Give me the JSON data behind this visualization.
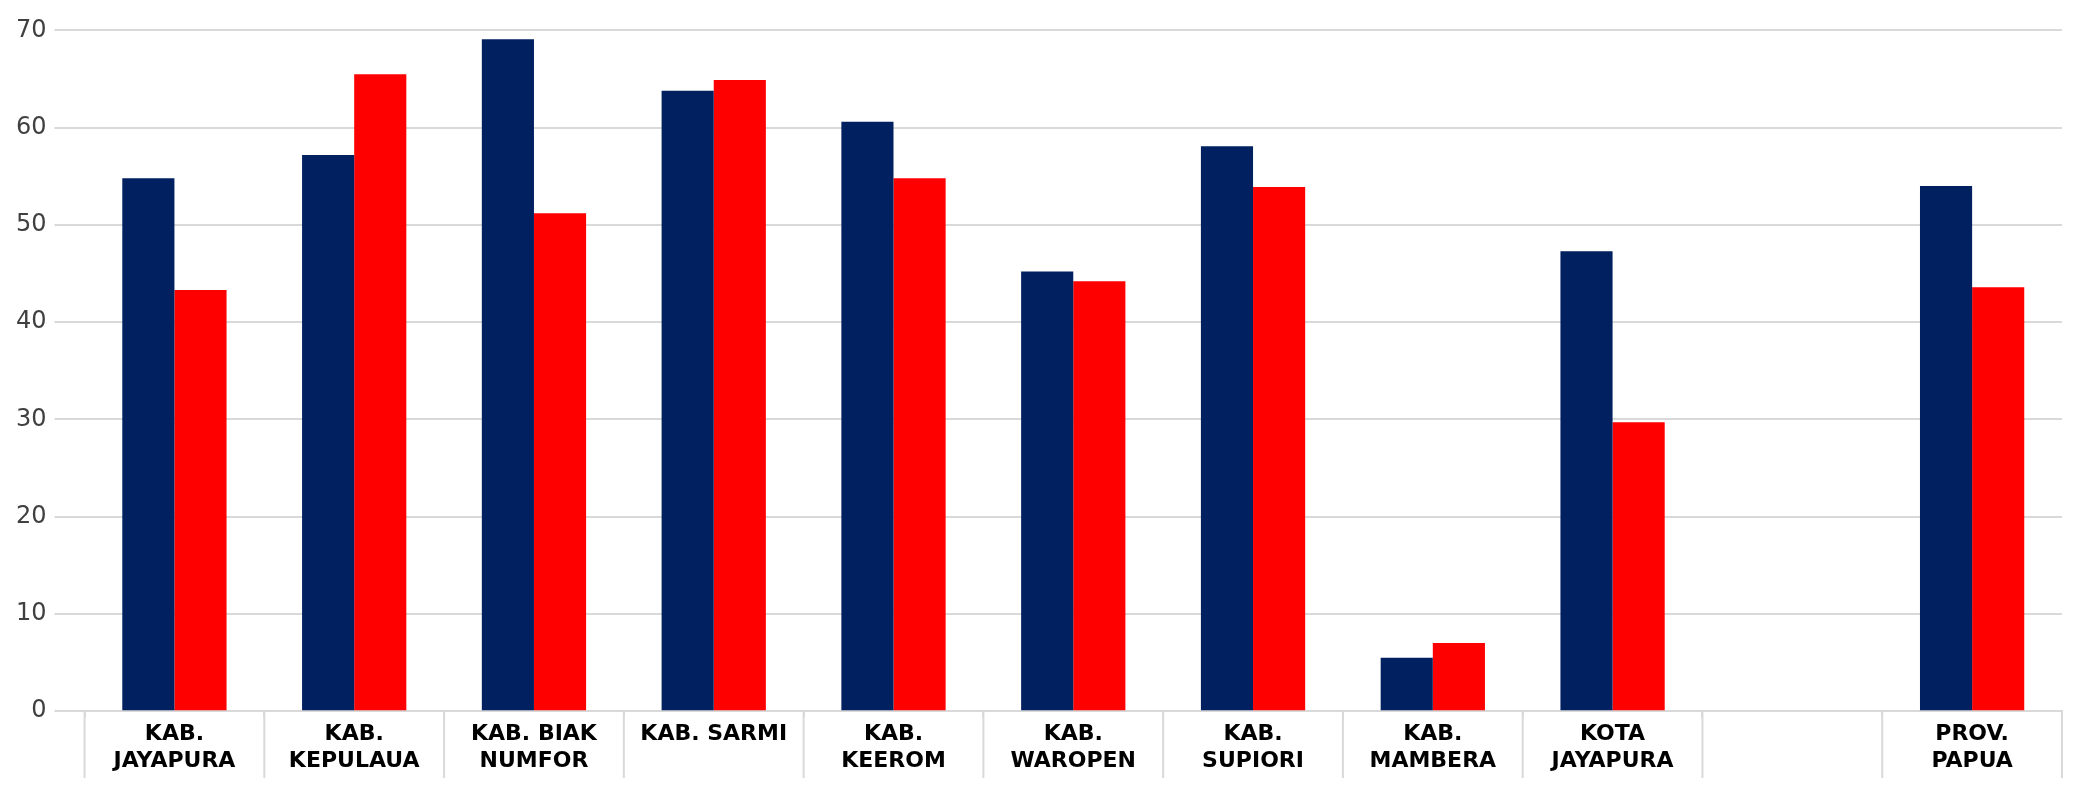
{
  "chart_data": {
    "type": "bar",
    "categories": [
      "KAB. JAYAPURA",
      "KAB. KEPULAUA",
      "KAB. BIAK NUMFOR",
      "KAB. SARMI",
      "KAB. KEEROM",
      "KAB. WAROPEN",
      "KAB. SUPIORI",
      "KAB. MAMBERA",
      "KOTA JAYAPURA",
      null,
      "PROV. PAPUA"
    ],
    "series": [
      {
        "color": "#002060",
        "values": [
          54.8,
          57.2,
          69.1,
          63.8,
          60.6,
          45.2,
          58.1,
          5.5,
          47.3,
          null,
          54.0
        ]
      },
      {
        "color": "#ff0000",
        "values": [
          43.3,
          65.5,
          51.2,
          64.9,
          54.8,
          44.2,
          53.9,
          7.0,
          29.7,
          null,
          43.6
        ]
      }
    ],
    "ylim": [
      0,
      70
    ],
    "yticks": [
      0,
      10,
      20,
      30,
      40,
      50,
      60,
      70
    ],
    "grid": "y",
    "legend": false
  }
}
